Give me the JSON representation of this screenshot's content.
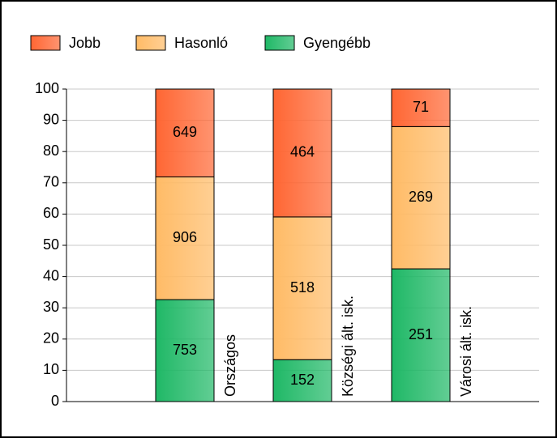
{
  "chart_data": {
    "type": "bar",
    "stack": "percent",
    "categories": [
      "Országos",
      "Községi ált. isk.",
      "Városi ált. isk."
    ],
    "series": [
      {
        "name": "Jobb",
        "color": "#ff6633",
        "values": [
          649,
          464,
          71
        ]
      },
      {
        "name": "Hasonló",
        "color": "#ffbb66",
        "values": [
          906,
          518,
          269
        ]
      },
      {
        "name": "Gyengébb",
        "color": "#1fb866",
        "values": [
          753,
          152,
          251
        ]
      }
    ],
    "ylim": [
      0,
      100
    ],
    "yticks": [
      0,
      10,
      20,
      30,
      40,
      50,
      60,
      70,
      80,
      90,
      100
    ],
    "grid": true
  }
}
